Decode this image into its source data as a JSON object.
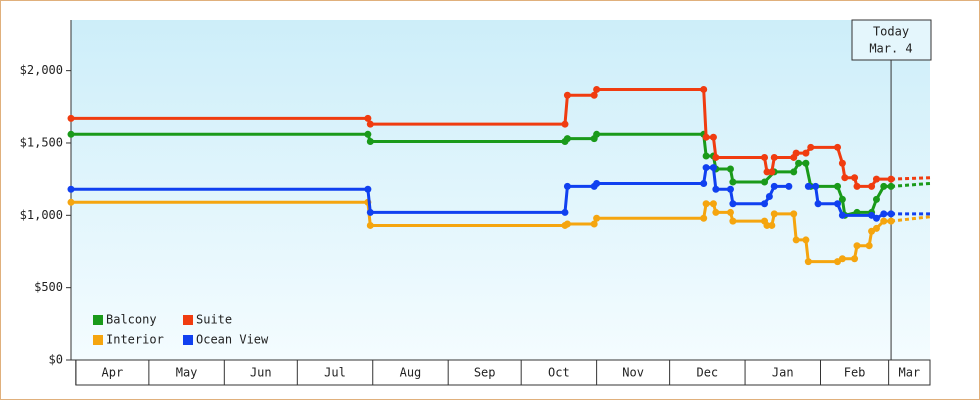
{
  "chart_data": {
    "type": "line",
    "xlim": [
      -2,
      351
    ],
    "xticks": [
      {
        "value": 0,
        "label": "Apr"
      },
      {
        "value": 30,
        "label": "May"
      },
      {
        "value": 61,
        "label": "Jun"
      },
      {
        "value": 91,
        "label": "Jul"
      },
      {
        "value": 122,
        "label": "Aug"
      },
      {
        "value": 153,
        "label": "Sep"
      },
      {
        "value": 183,
        "label": "Oct"
      },
      {
        "value": 214,
        "label": "Nov"
      },
      {
        "value": 244,
        "label": "Dec"
      },
      {
        "value": 275,
        "label": "Jan"
      },
      {
        "value": 306,
        "label": "Feb"
      },
      {
        "value": 334,
        "label": "Mar"
      }
    ],
    "ylim": [
      0,
      2350
    ],
    "yticks": [
      {
        "value": 0,
        "label": "$0"
      },
      {
        "value": 500,
        "label": "$500"
      },
      {
        "value": 1000,
        "label": "$1,000"
      },
      {
        "value": 1500,
        "label": "$1,500"
      },
      {
        "value": 2000,
        "label": "$2,000"
      }
    ],
    "today": {
      "x": 335,
      "label": [
        "Today",
        "Mar. 4"
      ]
    },
    "forecast_x": [
      335,
      351
    ],
    "series": [
      {
        "name": "Balcony",
        "color": "#1a9a1a",
        "x": [
          -2,
          120,
          121,
          201,
          202,
          213,
          214,
          258,
          259,
          262,
          263,
          269,
          270,
          283,
          287,
          295,
          297,
          300,
          302,
          313,
          315,
          316,
          321,
          327,
          329,
          332,
          335
        ],
        "values": [
          1560,
          1560,
          1510,
          1510,
          1530,
          1530,
          1560,
          1560,
          1410,
          1410,
          1320,
          1320,
          1230,
          1230,
          1300,
          1300,
          1360,
          1360,
          1200,
          1200,
          1110,
          1000,
          1020,
          1020,
          1110,
          1200,
          1200
        ],
        "forecast": [
          1200,
          1220
        ]
      },
      {
        "name": "Suite",
        "color": "#f03c10",
        "x": [
          -2,
          120,
          121,
          201,
          202,
          213,
          214,
          258,
          259,
          262,
          263,
          283,
          284,
          286,
          287,
          295,
          296,
          300,
          302,
          313,
          315,
          316,
          320,
          321,
          327,
          329,
          335
        ],
        "values": [
          1670,
          1670,
          1630,
          1630,
          1830,
          1830,
          1870,
          1870,
          1540,
          1540,
          1400,
          1400,
          1300,
          1300,
          1400,
          1400,
          1430,
          1430,
          1470,
          1470,
          1360,
          1260,
          1260,
          1200,
          1200,
          1250,
          1250
        ],
        "forecast": [
          1250,
          1260
        ]
      },
      {
        "name": "Interior",
        "color": "#f5a50f",
        "x": [
          -2,
          120,
          121,
          201,
          202,
          213,
          214,
          258,
          259,
          262,
          263,
          269,
          270,
          283,
          284,
          286,
          287,
          295,
          296,
          300,
          301,
          313,
          315,
          320,
          321,
          326,
          327,
          329,
          332,
          335
        ],
        "values": [
          1090,
          1090,
          930,
          930,
          940,
          940,
          980,
          980,
          1080,
          1080,
          1020,
          1020,
          960,
          960,
          930,
          930,
          1010,
          1010,
          830,
          830,
          680,
          680,
          700,
          700,
          790,
          790,
          890,
          910,
          960,
          960
        ],
        "forecast": [
          960,
          990
        ]
      },
      {
        "name": "Ocean View",
        "color": "#1040f0",
        "x": [
          -2,
          120,
          121,
          201,
          202,
          213,
          214,
          258,
          259,
          262,
          263,
          269,
          270,
          283,
          285,
          287,
          293,
          300,
          301,
          304,
          305,
          313,
          315,
          327,
          329,
          332,
          335
        ],
        "values": [
          1180,
          1180,
          1020,
          1020,
          1200,
          1200,
          1220,
          1220,
          1330,
          1330,
          1180,
          1180,
          1080,
          1080,
          1130,
          1200,
          1200,
          null,
          1200,
          1200,
          1080,
          1080,
          1000,
          1000,
          980,
          1010,
          1010
        ],
        "forecast": [
          1010,
          1010
        ]
      }
    ]
  }
}
